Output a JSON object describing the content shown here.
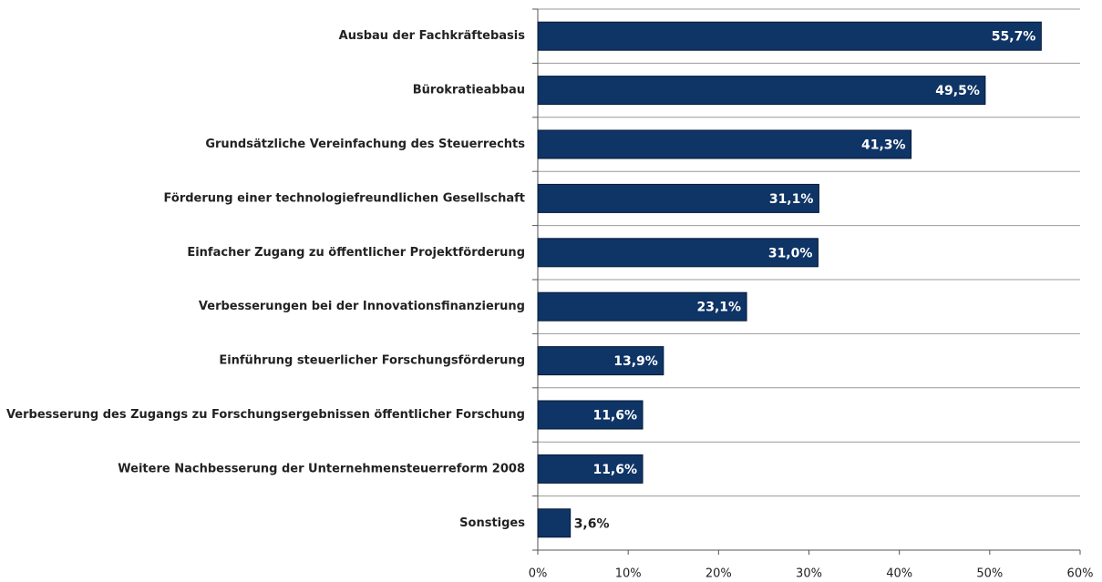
{
  "chart_data": {
    "type": "bar",
    "orientation": "horizontal",
    "categories": [
      "Ausbau der Fachkräftebasis",
      "Bürokratieabbau",
      "Grundsätzliche Vereinfachung des Steuerrechts",
      "Förderung einer technologiefreundlichen Gesellschaft",
      "Einfacher Zugang zu öffentlicher Projektförderung",
      "Verbesserungen bei der Innovationsfinanzierung",
      "Einführung steuerlicher Forschungsförderung",
      "Verbesserung des Zugangs zu Forschungsergebnissen öffentlicher Forschung",
      "Weitere Nachbesserung der Unternehmensteuerreform 2008",
      "Sonstiges"
    ],
    "values": [
      55.7,
      49.5,
      41.3,
      31.1,
      31.0,
      23.1,
      13.9,
      11.6,
      11.6,
      3.6
    ],
    "value_labels": [
      "55,7%",
      "49,5%",
      "41,3%",
      "31,1%",
      "31,0%",
      "23,1%",
      "13,9%",
      "11,6%",
      "11,6%",
      "3,6%"
    ],
    "color": "#0f3466",
    "xlim": [
      0,
      60
    ],
    "xticks": [
      {
        "value": 0,
        "label": "0%"
      },
      {
        "value": 10,
        "label": "10%"
      },
      {
        "value": 20,
        "label": "20%"
      },
      {
        "value": 30,
        "label": "30%"
      },
      {
        "value": 40,
        "label": "40%"
      },
      {
        "value": 50,
        "label": "50%"
      },
      {
        "value": 60,
        "label": "60%"
      }
    ]
  }
}
